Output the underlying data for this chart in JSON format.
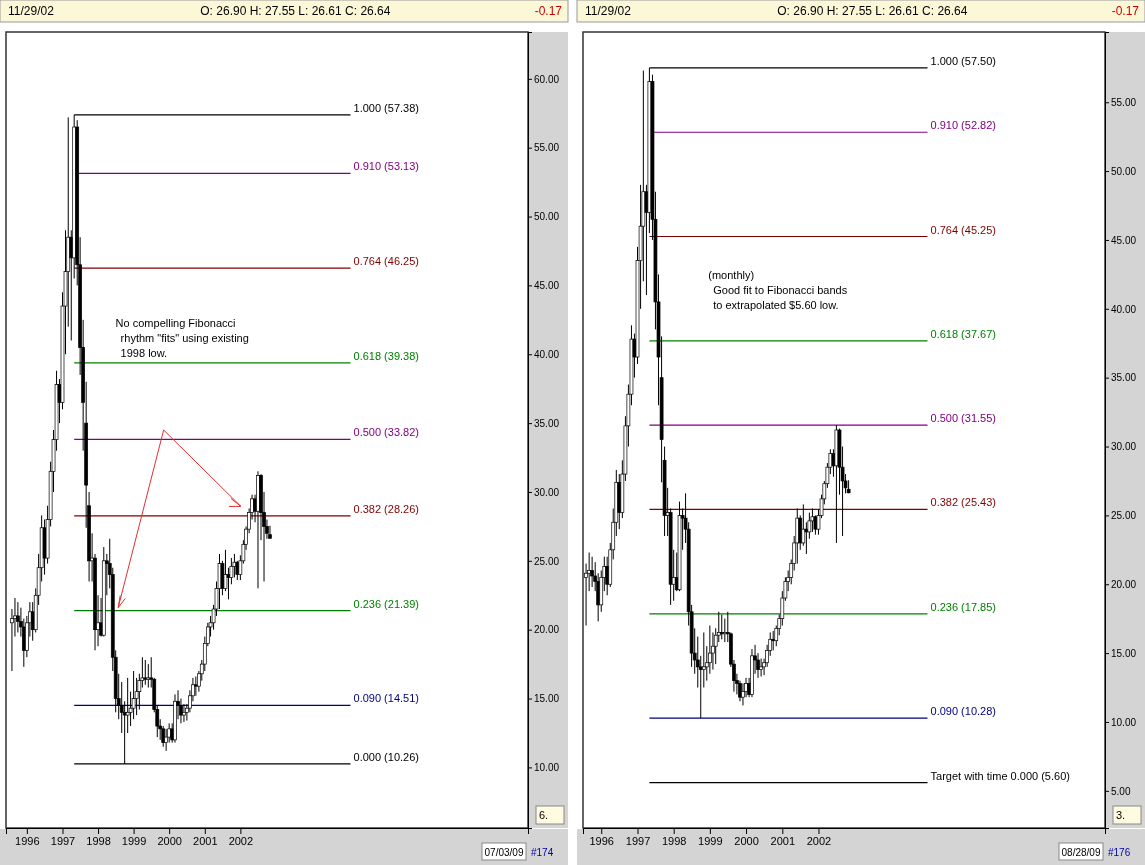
{
  "chart_data": [
    {
      "type": "candlestick",
      "x": [
        "1995-08",
        "1995-09",
        "1995-10",
        "1995-11",
        "1995-12",
        "1996-01",
        "1996-02",
        "1996-03",
        "1996-04",
        "1996-05",
        "1996-06",
        "1996-07",
        "1996-08",
        "1996-09",
        "1996-10",
        "1996-11",
        "1996-12",
        "1997-01",
        "1997-02",
        "1997-03",
        "1997-04",
        "1997-05",
        "1997-06",
        "1997-07",
        "1997-08",
        "1997-09",
        "1997-10",
        "1997-11",
        "1997-12",
        "1998-01",
        "1998-02",
        "1998-03",
        "1998-04",
        "1998-05",
        "1998-06",
        "1998-07",
        "1998-08",
        "1998-09",
        "1998-10",
        "1998-11",
        "1998-12",
        "1999-01",
        "1999-02",
        "1999-03",
        "1999-04",
        "1999-05",
        "1999-06",
        "1999-07",
        "1999-08",
        "1999-09",
        "1999-10",
        "1999-11",
        "1999-12",
        "2000-01",
        "2000-02",
        "2000-03",
        "2000-04",
        "2000-05",
        "2000-06",
        "2000-07",
        "2000-08",
        "2000-09",
        "2000-10",
        "2000-11",
        "2000-12",
        "2001-01",
        "2001-02",
        "2001-03",
        "2001-04",
        "2001-05",
        "2001-06",
        "2001-07",
        "2001-08",
        "2001-09",
        "2001-10",
        "2001-11",
        "2001-12",
        "2002-01",
        "2002-02",
        "2002-03",
        "2002-04",
        "2002-05",
        "2002-06",
        "2002-07",
        "2002-08",
        "2002-09",
        "2002-10",
        "2002-11"
      ],
      "ohlc": [
        [
          20.5,
          21.5,
          17.0,
          20.8
        ],
        [
          20.8,
          22.3,
          19.5,
          21.0
        ],
        [
          21.0,
          22.0,
          19.8,
          20.6
        ],
        [
          20.6,
          21.6,
          19.5,
          20.2
        ],
        [
          20.2,
          20.8,
          17.3,
          18.5
        ],
        [
          18.5,
          21.0,
          18.0,
          20.5
        ],
        [
          20.5,
          22.0,
          19.5,
          21.3
        ],
        [
          21.3,
          22.0,
          19.2,
          20.0
        ],
        [
          20.0,
          23.0,
          19.8,
          22.5
        ],
        [
          22.5,
          25.5,
          21.8,
          24.5
        ],
        [
          24.5,
          28.3,
          23.5,
          27.4
        ],
        [
          27.4,
          28.0,
          24.0,
          25.2
        ],
        [
          25.2,
          29.0,
          24.8,
          28.0
        ],
        [
          28.0,
          32.2,
          27.5,
          31.5
        ],
        [
          31.5,
          34.5,
          30.0,
          33.8
        ],
        [
          33.8,
          38.8,
          33.0,
          37.8
        ],
        [
          37.8,
          38.2,
          35.0,
          36.5
        ],
        [
          36.5,
          44.5,
          36.0,
          43.5
        ],
        [
          43.5,
          49.0,
          40.0,
          46.0
        ],
        [
          46.0,
          57.2,
          42.0,
          48.5
        ],
        [
          48.5,
          49.0,
          41.0,
          47.0
        ],
        [
          47.0,
          57.38,
          45.5,
          56.5
        ],
        [
          56.5,
          57.0,
          45.0,
          46.5
        ],
        [
          46.5,
          48.5,
          38.5,
          40.5
        ],
        [
          40.5,
          42.5,
          33.0,
          36.5
        ],
        [
          35.0,
          38.0,
          27.4,
          30.5
        ],
        [
          29.0,
          30.0,
          23.5,
          25.0
        ],
        [
          25.0,
          27.0,
          23.5,
          25.2
        ],
        [
          25.2,
          25.5,
          18.5,
          20.0
        ],
        [
          20.0,
          22.5,
          18.8,
          20.5
        ],
        [
          20.5,
          22.3,
          19.5,
          19.6
        ],
        [
          19.6,
          26.0,
          19.5,
          25.0
        ],
        [
          25.0,
          25.5,
          22.5,
          24.8
        ],
        [
          24.8,
          26.6,
          23.0,
          24.0
        ],
        [
          24.0,
          24.5,
          17.0,
          18.0
        ],
        [
          18.0,
          18.5,
          14.0,
          15.0
        ],
        [
          15.0,
          16.8,
          13.5,
          14.5
        ],
        [
          14.5,
          16.2,
          12.5,
          14.0
        ],
        [
          14.0,
          14.8,
          10.26,
          13.8
        ],
        [
          13.8,
          16.5,
          12.5,
          14.0
        ],
        [
          14.0,
          15.5,
          13.0,
          14.3
        ],
        [
          14.3,
          17.0,
          13.5,
          15.0
        ],
        [
          15.0,
          16.5,
          13.8,
          15.5
        ],
        [
          15.5,
          16.8,
          14.2,
          16.3
        ],
        [
          16.3,
          18.0,
          15.8,
          16.5
        ],
        [
          16.5,
          17.8,
          16.0,
          16.4
        ],
        [
          16.4,
          17.5,
          15.8,
          16.5
        ],
        [
          16.5,
          18.0,
          15.8,
          16.4
        ],
        [
          16.4,
          16.5,
          14.0,
          14.2
        ],
        [
          14.2,
          14.5,
          12.2,
          13.0
        ],
        [
          13.0,
          13.5,
          12.0,
          12.8
        ],
        [
          12.8,
          13.0,
          11.5,
          11.8
        ],
        [
          11.8,
          12.8,
          11.2,
          12.2
        ],
        [
          12.2,
          13.2,
          11.8,
          12.8
        ],
        [
          12.8,
          13.2,
          11.8,
          12.0
        ],
        [
          12.0,
          15.3,
          11.8,
          14.8
        ],
        [
          14.8,
          15.6,
          13.5,
          14.5
        ],
        [
          14.5,
          15.0,
          13.2,
          13.8
        ],
        [
          13.8,
          14.6,
          13.3,
          14.0
        ],
        [
          14.0,
          14.6,
          13.4,
          14.3
        ],
        [
          14.3,
          15.6,
          14.0,
          15.2
        ],
        [
          15.2,
          16.5,
          14.8,
          16.0
        ],
        [
          16.0,
          16.6,
          15.2,
          15.9
        ],
        [
          15.9,
          17.0,
          15.5,
          16.8
        ],
        [
          16.8,
          17.8,
          16.3,
          17.5
        ],
        [
          17.5,
          19.5,
          17.0,
          19.0
        ],
        [
          19.0,
          20.5,
          18.8,
          20.2
        ],
        [
          20.2,
          21.0,
          19.5,
          20.5
        ],
        [
          20.5,
          21.8,
          20.0,
          21.5
        ],
        [
          21.5,
          23.5,
          21.0,
          23.0
        ],
        [
          23.0,
          25.5,
          21.5,
          24.8
        ],
        [
          24.8,
          25.0,
          22.5,
          23.0
        ],
        [
          23.0,
          25.8,
          22.8,
          24.0
        ],
        [
          24.0,
          24.5,
          22.2,
          23.8
        ],
        [
          23.8,
          25.2,
          23.3,
          24.6
        ],
        [
          24.6,
          25.5,
          23.8,
          24.9
        ],
        [
          24.9,
          25.0,
          23.6,
          24.0
        ],
        [
          24.0,
          25.4,
          23.6,
          25.0
        ],
        [
          25.0,
          26.5,
          24.8,
          26.2
        ],
        [
          26.2,
          27.5,
          25.8,
          27.3
        ],
        [
          27.3,
          28.8,
          27.0,
          28.5
        ],
        [
          28.5,
          29.8,
          28.0,
          29.5
        ],
        [
          29.5,
          29.8,
          27.8,
          28.6
        ],
        [
          28.6,
          31.5,
          23.0,
          31.2
        ],
        [
          31.2,
          31.3,
          26.5,
          28.5
        ],
        [
          28.5,
          30.0,
          23.5,
          27.5
        ],
        [
          27.5,
          28.0,
          26.6,
          27.0
        ],
        [
          26.9,
          27.55,
          26.61,
          26.64
        ]
      ],
      "xlim": [
        "1995-06",
        "2010-02"
      ],
      "xticks": [
        "1996",
        "1997",
        "1998",
        "1999",
        "2000",
        "2001",
        "2002"
      ],
      "ylim": [
        5.6,
        63.4
      ],
      "yticks": [
        {
          "value": 10,
          "label": "10.00"
        },
        {
          "value": 15,
          "label": "15.00"
        },
        {
          "value": 20,
          "label": "20.00"
        },
        {
          "value": 25,
          "label": "25.00"
        },
        {
          "value": 30,
          "label": "30.00"
        },
        {
          "value": 35,
          "label": "35.00"
        },
        {
          "value": 40,
          "label": "40.00"
        },
        {
          "value": 45,
          "label": "45.00"
        },
        {
          "value": 50,
          "label": "50.00"
        },
        {
          "value": 55,
          "label": "55.00"
        },
        {
          "value": 60,
          "label": "60.00"
        }
      ],
      "ref_lines": [
        {
          "axis": "y",
          "value": 57.38,
          "label": "1.000 (57.38)",
          "color": "#000000"
        },
        {
          "axis": "y",
          "value": 53.13,
          "label": "0.910 (53.13)",
          "color": "#800080"
        },
        {
          "axis": "y",
          "value": 46.25,
          "label": "0.764 (46.25)",
          "color": "#800000"
        },
        {
          "axis": "y",
          "value": 39.38,
          "label": "0.618 (39.38)",
          "color": "#008000"
        },
        {
          "axis": "y",
          "value": 33.82,
          "label": "0.500 (33.82)",
          "color": "#800080"
        },
        {
          "axis": "y",
          "value": 28.26,
          "label": "0.382 (28.26)",
          "color": "#800000"
        },
        {
          "axis": "y",
          "value": 21.39,
          "label": "0.236 (21.39)",
          "color": "#008000"
        },
        {
          "axis": "y",
          "value": 14.51,
          "label": "0.090 (14.51)",
          "color": "#000080"
        },
        {
          "axis": "y",
          "value": 10.26,
          "label": "0.000 (10.26)",
          "color": "#000000"
        }
      ],
      "annotations": [
        "11/29/02",
        "O: 26.90  H: 27.55  L: 26.61  C: 26.64",
        "-0.17",
        "No compelling Fibonacci\nrhythm \"fits\" using existing\n1998 low.",
        "07/03/09",
        "#174",
        "6."
      ]
    },
    {
      "type": "candlestick",
      "x": [
        "1995-08",
        "1995-09",
        "1995-10",
        "1995-11",
        "1995-12",
        "1996-01",
        "1996-02",
        "1996-03",
        "1996-04",
        "1996-05",
        "1996-06",
        "1996-07",
        "1996-08",
        "1996-09",
        "1996-10",
        "1996-11",
        "1996-12",
        "1997-01",
        "1997-02",
        "1997-03",
        "1997-04",
        "1997-05",
        "1997-06",
        "1997-07",
        "1997-08",
        "1997-09",
        "1997-10",
        "1997-11",
        "1997-12",
        "1998-01",
        "1998-02",
        "1998-03",
        "1998-04",
        "1998-05",
        "1998-06",
        "1998-07",
        "1998-08",
        "1998-09",
        "1998-10",
        "1998-11",
        "1998-12",
        "1999-01",
        "1999-02",
        "1999-03",
        "1999-04",
        "1999-05",
        "1999-06",
        "1999-07",
        "1999-08",
        "1999-09",
        "1999-10",
        "1999-11",
        "1999-12",
        "2000-01",
        "2000-02",
        "2000-03",
        "2000-04",
        "2000-05",
        "2000-06",
        "2000-07",
        "2000-08",
        "2000-09",
        "2000-10",
        "2000-11",
        "2000-12",
        "2001-01",
        "2001-02",
        "2001-03",
        "2001-04",
        "2001-05",
        "2001-06",
        "2001-07",
        "2001-08",
        "2001-09",
        "2001-10",
        "2001-11",
        "2001-12",
        "2002-01",
        "2002-02",
        "2002-03",
        "2002-04",
        "2002-05",
        "2002-06",
        "2002-07",
        "2002-08",
        "2002-09",
        "2002-10",
        "2002-11"
      ],
      "ohlc": [
        [
          20.5,
          21.5,
          17.0,
          20.8
        ],
        [
          20.8,
          22.3,
          19.5,
          21.0
        ],
        [
          21.0,
          22.0,
          19.8,
          20.6
        ],
        [
          20.6,
          21.6,
          19.5,
          20.2
        ],
        [
          20.2,
          20.8,
          17.3,
          18.5
        ],
        [
          18.5,
          21.0,
          18.0,
          20.5
        ],
        [
          20.5,
          22.0,
          19.5,
          21.3
        ],
        [
          21.3,
          22.0,
          19.2,
          20.0
        ],
        [
          20.0,
          23.0,
          19.8,
          22.5
        ],
        [
          22.5,
          25.5,
          21.8,
          24.5
        ],
        [
          24.5,
          28.3,
          23.5,
          27.4
        ],
        [
          27.4,
          28.0,
          24.0,
          25.2
        ],
        [
          25.2,
          29.0,
          24.8,
          28.0
        ],
        [
          28.0,
          32.2,
          27.5,
          31.5
        ],
        [
          31.5,
          34.5,
          30.0,
          33.8
        ],
        [
          33.8,
          38.8,
          33.0,
          37.8
        ],
        [
          37.8,
          38.2,
          35.0,
          36.5
        ],
        [
          36.5,
          44.5,
          36.0,
          43.5
        ],
        [
          43.5,
          49.0,
          40.0,
          46.0
        ],
        [
          46.0,
          57.3,
          42.0,
          48.5
        ],
        [
          48.5,
          49.0,
          41.0,
          47.0
        ],
        [
          47.0,
          57.5,
          45.5,
          56.5
        ],
        [
          56.5,
          57.0,
          45.0,
          46.5
        ],
        [
          46.5,
          48.5,
          38.5,
          40.5
        ],
        [
          40.5,
          42.5,
          33.0,
          36.5
        ],
        [
          35.0,
          38.0,
          27.4,
          30.5
        ],
        [
          29.0,
          30.0,
          23.5,
          25.0
        ],
        [
          25.0,
          27.0,
          23.5,
          25.2
        ],
        [
          25.2,
          25.5,
          18.5,
          20.0
        ],
        [
          20.0,
          22.5,
          18.8,
          20.5
        ],
        [
          20.5,
          22.3,
          19.5,
          19.6
        ],
        [
          19.6,
          26.0,
          19.5,
          25.0
        ],
        [
          25.0,
          25.5,
          22.5,
          24.8
        ],
        [
          24.8,
          26.6,
          23.0,
          24.0
        ],
        [
          24.0,
          24.5,
          17.0,
          18.0
        ],
        [
          18.0,
          18.5,
          14.0,
          15.0
        ],
        [
          15.0,
          16.8,
          13.5,
          14.5
        ],
        [
          14.5,
          16.2,
          12.5,
          14.0
        ],
        [
          14.0,
          14.8,
          10.28,
          13.8
        ],
        [
          13.8,
          16.5,
          12.5,
          14.0
        ],
        [
          14.0,
          15.5,
          13.0,
          14.3
        ],
        [
          14.3,
          17.0,
          13.5,
          15.0
        ],
        [
          15.0,
          16.5,
          13.8,
          15.5
        ],
        [
          15.5,
          16.8,
          14.2,
          16.3
        ],
        [
          16.3,
          18.0,
          15.8,
          16.5
        ],
        [
          16.5,
          17.8,
          16.0,
          16.4
        ],
        [
          16.4,
          17.5,
          15.8,
          16.5
        ],
        [
          16.5,
          18.0,
          15.8,
          16.4
        ],
        [
          16.4,
          16.5,
          14.0,
          14.2
        ],
        [
          14.2,
          14.5,
          12.2,
          13.0
        ],
        [
          13.0,
          13.5,
          12.0,
          12.8
        ],
        [
          12.8,
          13.0,
          11.5,
          11.8
        ],
        [
          11.8,
          12.8,
          11.2,
          12.2
        ],
        [
          12.2,
          13.2,
          11.8,
          12.8
        ],
        [
          12.8,
          13.2,
          11.8,
          12.0
        ],
        [
          12.0,
          15.3,
          11.8,
          14.8
        ],
        [
          14.8,
          15.6,
          13.5,
          14.5
        ],
        [
          14.5,
          15.0,
          13.2,
          13.8
        ],
        [
          13.8,
          14.6,
          13.3,
          14.0
        ],
        [
          14.0,
          14.6,
          13.4,
          14.3
        ],
        [
          14.3,
          15.6,
          14.0,
          15.2
        ],
        [
          15.2,
          16.5,
          14.8,
          16.0
        ],
        [
          16.0,
          16.6,
          15.2,
          15.9
        ],
        [
          15.9,
          17.0,
          15.5,
          16.8
        ],
        [
          16.8,
          17.8,
          16.3,
          17.5
        ],
        [
          17.5,
          19.5,
          17.0,
          19.0
        ],
        [
          19.0,
          20.5,
          18.8,
          20.2
        ],
        [
          20.2,
          21.0,
          19.5,
          20.5
        ],
        [
          20.5,
          21.8,
          20.0,
          21.5
        ],
        [
          21.5,
          23.5,
          21.0,
          23.0
        ],
        [
          23.0,
          25.5,
          21.5,
          24.8
        ],
        [
          24.8,
          25.0,
          22.5,
          23.0
        ],
        [
          23.0,
          25.8,
          22.8,
          24.0
        ],
        [
          24.0,
          24.5,
          22.2,
          23.8
        ],
        [
          23.8,
          25.2,
          23.3,
          24.6
        ],
        [
          24.6,
          25.5,
          23.8,
          24.9
        ],
        [
          24.9,
          25.0,
          23.6,
          24.0
        ],
        [
          24.0,
          25.4,
          23.6,
          25.0
        ],
        [
          25.0,
          26.5,
          24.8,
          26.2
        ],
        [
          26.2,
          27.5,
          25.8,
          27.3
        ],
        [
          27.3,
          28.8,
          27.0,
          28.5
        ],
        [
          28.5,
          29.8,
          28.0,
          29.5
        ],
        [
          29.5,
          29.8,
          27.8,
          28.6
        ],
        [
          28.6,
          31.55,
          23.0,
          31.2
        ],
        [
          31.2,
          31.3,
          26.5,
          28.5
        ],
        [
          28.5,
          30.0,
          23.5,
          27.5
        ],
        [
          27.5,
          28.0,
          26.6,
          27.0
        ],
        [
          26.9,
          27.55,
          26.61,
          26.64
        ]
      ],
      "xlim": [
        "1995-07",
        "2009-12"
      ],
      "xticks": [
        "1996",
        "1997",
        "1998",
        "1999",
        "2000",
        "2001",
        "2002"
      ],
      "ylim": [
        2.3,
        60.1
      ],
      "yticks": [
        {
          "value": 5,
          "label": "5.00"
        },
        {
          "value": 10,
          "label": "10.00"
        },
        {
          "value": 15,
          "label": "15.00"
        },
        {
          "value": 20,
          "label": "20.00"
        },
        {
          "value": 25,
          "label": "25.00"
        },
        {
          "value": 30,
          "label": "30.00"
        },
        {
          "value": 35,
          "label": "35.00"
        },
        {
          "value": 40,
          "label": "40.00"
        },
        {
          "value": 45,
          "label": "45.00"
        },
        {
          "value": 50,
          "label": "50.00"
        },
        {
          "value": 55,
          "label": "55.00"
        }
      ],
      "ref_lines": [
        {
          "axis": "y",
          "value": 57.5,
          "label": "1.000 (57.50)",
          "color": "#000000"
        },
        {
          "axis": "y",
          "value": 52.82,
          "label": "0.910 (52.82)",
          "color": "#800080"
        },
        {
          "axis": "y",
          "value": 45.25,
          "label": "0.764 (45.25)",
          "color": "#800000"
        },
        {
          "axis": "y",
          "value": 37.67,
          "label": "0.618 (37.67)",
          "color": "#008000"
        },
        {
          "axis": "y",
          "value": 31.55,
          "label": "0.500 (31.55)",
          "color": "#800080"
        },
        {
          "axis": "y",
          "value": 25.43,
          "label": "0.382 (25.43)",
          "color": "#800000"
        },
        {
          "axis": "y",
          "value": 17.85,
          "label": "0.236 (17.85)",
          "color": "#008000"
        },
        {
          "axis": "y",
          "value": 10.28,
          "label": "0.090 (10.28)",
          "color": "#000080"
        },
        {
          "axis": "y",
          "value": 5.6,
          "label": "Target with time  0.000 (5.60)",
          "color": "#000000"
        }
      ],
      "annotations": [
        "11/29/02",
        "O: 26.90  H: 27.55  L: 26.61  C: 26.64",
        "-0.17",
        "(monthly)\nGood fit to Fibonacci bands\nto extrapolated $5.60 low.",
        "08/28/09",
        "#176",
        "3."
      ]
    }
  ]
}
